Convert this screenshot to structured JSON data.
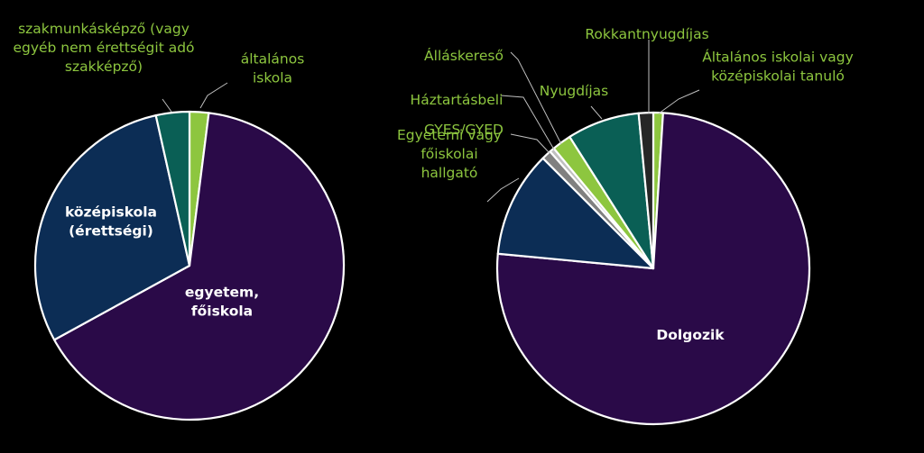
{
  "chart_data": [
    {
      "type": "pie",
      "title": "",
      "start_angle_deg": 0,
      "slices": [
        {
          "label": "általános iskola",
          "lines": [
            "általános",
            "iskola"
          ],
          "value": 2,
          "color": "#8dc63f",
          "label_color": "#8dc63f",
          "label_inside": false
        },
        {
          "label": "egyetem, főiskola",
          "lines": [
            "egyetem,",
            "főiskola"
          ],
          "value": 65,
          "color": "#2a0a48",
          "label_color": "#ffffff",
          "label_inside": true
        },
        {
          "label": "középiskola (érettségi)",
          "lines": [
            "középiskola",
            "(érettségi)"
          ],
          "value": 29.5,
          "color": "#0c2d55",
          "label_color": "#ffffff",
          "label_inside": true
        },
        {
          "label": "szakmunkásképző (vagy egyéb nem érettségit adó szakképző)",
          "lines": [
            "szakmunkásképző (vagy",
            "egyéb nem érettségit adó",
            "szakképző)"
          ],
          "value": 3.5,
          "color": "#0a5f55",
          "label_color": "#8dc63f",
          "label_inside": false
        }
      ]
    },
    {
      "type": "pie",
      "title": "",
      "start_angle_deg": 0,
      "slices": [
        {
          "label": "Általános iskolai vagy középiskolai tanuló",
          "lines": [
            "Általános iskolai vagy",
            "középiskolai tanuló"
          ],
          "value": 1,
          "color": "#8dc63f",
          "label_color": "#8dc63f",
          "label_inside": false
        },
        {
          "label": "Dolgozik",
          "lines": [
            "Dolgozik"
          ],
          "value": 75.5,
          "color": "#2a0a48",
          "label_color": "#ffffff",
          "label_inside": true
        },
        {
          "label": "Egyetemi vagy főiskolai hallgató",
          "lines": [
            "Egyetemi vagy",
            "főiskolai",
            "hallgató"
          ],
          "value": 11,
          "color": "#0c2d55",
          "label_color": "#8dc63f",
          "label_inside": false
        },
        {
          "label": "GYES/GYED",
          "lines": [
            "GYES/GYED"
          ],
          "value": 1,
          "color": "#808080",
          "label_color": "#8dc63f",
          "label_inside": false
        },
        {
          "label": "Háztartásbeli",
          "lines": [
            "Háztartásbeli"
          ],
          "value": 0.5,
          "color": "#c0c0c0",
          "label_color": "#8dc63f",
          "label_inside": false
        },
        {
          "label": "Álláskereső",
          "lines": [
            "Álláskereső"
          ],
          "value": 2,
          "color": "#8dc63f",
          "label_color": "#8dc63f",
          "label_inside": false
        },
        {
          "label": "Nyugdíjas",
          "lines": [
            "Nyugdíjas"
          ],
          "value": 7.5,
          "color": "#0a5f55",
          "label_color": "#8dc63f",
          "label_inside": false
        },
        {
          "label": "Rokkantnyugdíjas",
          "lines": [
            "Rokkantnyugdíjas"
          ],
          "value": 1.5,
          "color": "#262626",
          "label_color": "#8dc63f",
          "label_inside": false
        }
      ]
    }
  ]
}
